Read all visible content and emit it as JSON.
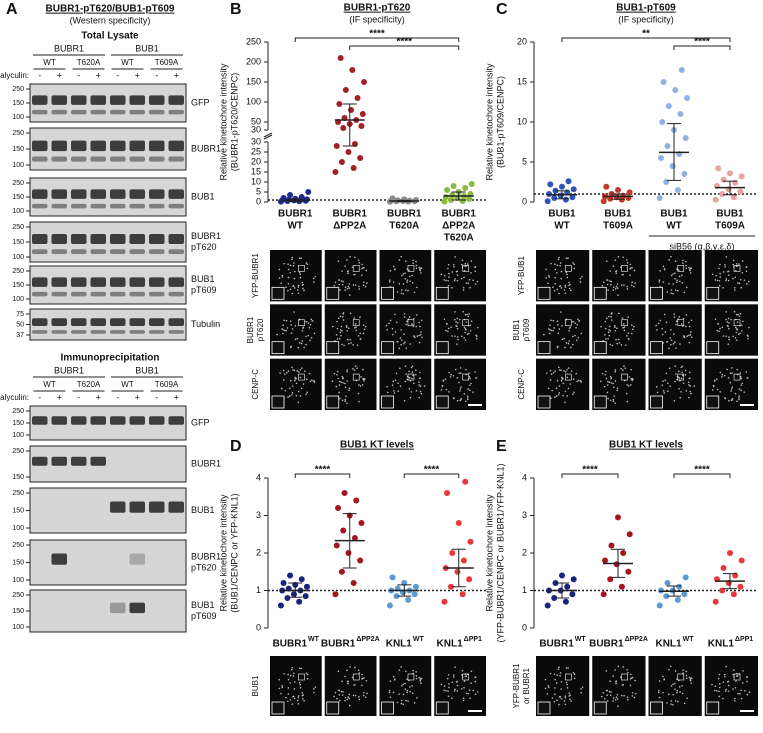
{
  "panel_a": {
    "label": "A",
    "title": "BUBR1-pT620/BUB1-pT609",
    "subtitle": "(Western specificity)",
    "sections": [
      {
        "title": "Total Lysate",
        "groups": [
          {
            "name": "BUBR1",
            "variants": [
              "WT",
              "T620A"
            ]
          },
          {
            "name": "BUB1",
            "variants": [
              "WT",
              "T609A"
            ]
          }
        ],
        "calyculin_label": "Calyculin:",
        "calyculin": [
          "-",
          "+",
          "-",
          "+",
          "-",
          "+",
          "-",
          "+"
        ],
        "blots": [
          {
            "label": [
              "GFP"
            ],
            "mw": [
              250,
              150,
              100
            ]
          },
          {
            "label": [
              "BUBR1"
            ],
            "mw": [
              250,
              150,
              100
            ]
          },
          {
            "label": [
              "BUB1"
            ],
            "mw": [
              250,
              150,
              100
            ]
          },
          {
            "label": [
              "BUBR1",
              "pT620"
            ],
            "mw": [
              250,
              150,
              100
            ]
          },
          {
            "label": [
              "BUB1",
              "pT609"
            ],
            "mw": [
              250,
              150,
              100
            ]
          },
          {
            "label": [
              "Tubulin"
            ],
            "mw": [
              75,
              50,
              37
            ]
          }
        ]
      },
      {
        "title": "Immunoprecipitation",
        "groups": [
          {
            "name": "BUBR1",
            "variants": [
              "WT",
              "T620A"
            ]
          },
          {
            "name": "BUB1",
            "variants": [
              "WT",
              "T609A"
            ]
          }
        ],
        "calyculin_label": "Calyculin:",
        "calyculin": [
          "-",
          "+",
          "-",
          "+",
          "-",
          "+",
          "-",
          "+"
        ],
        "blots": [
          {
            "label": [
              "GFP"
            ],
            "mw": [
              250,
              150,
              100
            ]
          },
          {
            "label": [
              "BUBR1"
            ],
            "mw": [
              250,
              150
            ]
          },
          {
            "label": [
              "BUB1"
            ],
            "mw": [
              250,
              150,
              100
            ]
          },
          {
            "label": [
              "BUBR1",
              "pT620"
            ],
            "mw": [
              250,
              150,
              100
            ]
          },
          {
            "label": [
              "BUB1",
              "pT609"
            ],
            "mw": [
              250,
              150,
              100
            ]
          }
        ]
      }
    ]
  },
  "panel_b": {
    "label": "B",
    "title": "BUBR1-pT620",
    "subtitle": "(IF specificity)",
    "y_label": [
      "Relative kinetochore intensity",
      "(BUBR1-pT620/CENPC)"
    ],
    "ylim": [
      0,
      250
    ],
    "ybreak": 30,
    "yticks": [
      0,
      5,
      10,
      15,
      20,
      25,
      30,
      50,
      100,
      150,
      200,
      250
    ],
    "reference_line": 1,
    "groups": [
      {
        "name": [
          "BUBR1",
          "WT"
        ],
        "color": "#1c2a8c",
        "mean": 0.9,
        "err": [
          0.3,
          1.5
        ],
        "points": [
          0.2,
          0.4,
          0.5,
          0.6,
          0.8,
          0.9,
          1.0,
          1.1,
          1.3,
          1.6,
          2.0,
          2.5,
          3.5,
          5.0
        ]
      },
      {
        "name": [
          "BUBR1",
          "ΔPP2A"
        ],
        "color": "#a3202b",
        "mean": 55,
        "err": [
          28,
          95
        ],
        "points": [
          15,
          17,
          20,
          22,
          25,
          28,
          29,
          35,
          40,
          45,
          50,
          55,
          60,
          70,
          80,
          95,
          110,
          130,
          150,
          180,
          210
        ]
      },
      {
        "name": [
          "BUBR1",
          "T620A"
        ],
        "color": "#8a8a8a",
        "mean": 0.5,
        "err": [
          0.2,
          0.8
        ],
        "points": [
          0.1,
          0.2,
          0.3,
          0.4,
          0.5,
          0.6,
          0.7,
          0.8,
          1.0,
          1.3,
          1.8
        ]
      },
      {
        "name": [
          "BUBR1",
          "ΔPP2A",
          "T620A"
        ],
        "color": "#8cba3c",
        "mean": 3,
        "err": [
          1,
          5
        ],
        "points": [
          0.2,
          0.5,
          1,
          1.5,
          2,
          2.5,
          3,
          3.5,
          4,
          5,
          6,
          7,
          8,
          9
        ]
      }
    ],
    "significance": [
      {
        "label": "****",
        "groups": [
          0,
          3
        ]
      },
      {
        "label": "****",
        "groups": [
          1,
          3
        ]
      }
    ],
    "image_rows": [
      [
        "YFP-BUBR1"
      ],
      [
        "BUBR1",
        "pT620"
      ],
      [
        "CENP-C"
      ]
    ]
  },
  "panel_c": {
    "label": "C",
    "title": "BUB1-pT609",
    "subtitle": "(IF specificity)",
    "y_label": [
      "Relative kinetochore intensity",
      "(BUB1-pT609/CENPC)"
    ],
    "ylim": [
      0,
      20
    ],
    "yticks": [
      0,
      5,
      10,
      15,
      20
    ],
    "reference_line": 1,
    "groups": [
      {
        "name": [
          "BUB1",
          "WT"
        ],
        "color": "#2f55b8",
        "mean": 0.9,
        "err": [
          0.4,
          1.4
        ],
        "points": [
          0.1,
          0.3,
          0.5,
          0.6,
          0.8,
          1.0,
          1.2,
          1.4,
          1.6,
          1.9,
          2.2,
          2.6
        ]
      },
      {
        "name": [
          "BUB1",
          "T609A"
        ],
        "color": "#c0392b",
        "mean": 0.7,
        "err": [
          0.35,
          1.0
        ],
        "points": [
          0.1,
          0.3,
          0.4,
          0.5,
          0.6,
          0.7,
          0.8,
          1.0,
          1.2,
          1.5,
          1.9
        ]
      },
      {
        "name": [
          "BUB1",
          "WT"
        ],
        "color": "#8fb1e3",
        "mean": 6.2,
        "err": [
          2.7,
          9.8
        ],
        "points": [
          0.5,
          1.5,
          2.5,
          3.5,
          4.5,
          5.5,
          6,
          7,
          8,
          9,
          10,
          11,
          12,
          13,
          14,
          15,
          16.5
        ]
      },
      {
        "name": [
          "BUB1",
          "T609A"
        ],
        "color": "#eaa2a2",
        "mean": 1.8,
        "err": [
          0.9,
          2.6
        ],
        "points": [
          0.3,
          0.6,
          1,
          1.3,
          1.6,
          2,
          2.4,
          2.8,
          3.2,
          3.6,
          4.2
        ]
      }
    ],
    "significance": [
      {
        "label": "**",
        "groups": [
          0,
          3
        ]
      },
      {
        "label": "****",
        "groups": [
          2,
          3
        ]
      }
    ],
    "treatment": {
      "label": "siB56 (α,β,γ,ε,δ)",
      "groups": [
        2,
        3
      ]
    },
    "image_rows": [
      [
        "YFP-BUB1"
      ],
      [
        "BUB1",
        "pT609"
      ],
      [
        "CENP-C"
      ]
    ]
  },
  "panel_d": {
    "label": "D",
    "title": "BUB1 KT levels",
    "y_label": [
      "Relative kinetochore intensity",
      "(BUB1/CENPC or YFP-KNL1)"
    ],
    "ylim": [
      0,
      4
    ],
    "yticks": [
      0,
      1,
      2,
      3,
      4
    ],
    "reference_line": 1,
    "groups": [
      {
        "name": "BUBR1",
        "sup": "WT",
        "color": "#1a237e",
        "mean": 1.0,
        "err": [
          0.82,
          1.2
        ],
        "points": [
          0.6,
          0.7,
          0.8,
          0.85,
          0.9,
          1,
          1,
          1.05,
          1.1,
          1.15,
          1.2,
          1.3,
          1.4
        ]
      },
      {
        "name": "BUBR1",
        "sup": "ΔPP2A",
        "color": "#a31621",
        "mean": 2.33,
        "err": [
          1.6,
          3.05
        ],
        "points": [
          0.9,
          1.2,
          1.5,
          1.8,
          2.0,
          2.2,
          2.4,
          2.6,
          2.8,
          3.0,
          3.2,
          3.4,
          3.6
        ]
      },
      {
        "name": "KNL1",
        "sup": "WT",
        "color": "#5b9bd5",
        "mean": 1.0,
        "err": [
          0.85,
          1.15
        ],
        "points": [
          0.6,
          0.75,
          0.85,
          0.9,
          0.95,
          1,
          1,
          1.05,
          1.1,
          1.2,
          1.35
        ]
      },
      {
        "name": "KNL1",
        "sup": "ΔPP1",
        "color": "#e8383d",
        "mean": 1.6,
        "err": [
          1.1,
          2.1
        ],
        "points": [
          0.7,
          0.9,
          1.1,
          1.3,
          1.5,
          1.6,
          1.8,
          2.0,
          2.3,
          2.8,
          3.6,
          3.9
        ]
      }
    ],
    "significance": [
      {
        "label": "****",
        "groups": [
          0,
          1
        ]
      },
      {
        "label": "****",
        "groups": [
          2,
          3
        ]
      }
    ],
    "image_rows": [
      [
        "BUB1"
      ]
    ]
  },
  "panel_e": {
    "label": "E",
    "title": "BUB1 KT levels",
    "y_label": [
      "Relative kinetochore intensity",
      "(YFP-BUBR1/CENPC or BUBR1/YFP-KNL1)"
    ],
    "ylim": [
      0,
      4
    ],
    "yticks": [
      0,
      1,
      2,
      3,
      4
    ],
    "reference_line": 1,
    "groups": [
      {
        "name": "BUBR1",
        "sup": "WT",
        "color": "#1a237e",
        "mean": 1.0,
        "err": [
          0.8,
          1.2
        ],
        "points": [
          0.6,
          0.7,
          0.8,
          0.9,
          1,
          1,
          1.1,
          1.2,
          1.3,
          1.4
        ]
      },
      {
        "name": "BUBR1",
        "sup": "ΔPP2A",
        "color": "#a31621",
        "mean": 1.72,
        "err": [
          1.35,
          2.1
        ],
        "points": [
          0.9,
          1.1,
          1.3,
          1.5,
          1.7,
          1.8,
          2.0,
          2.2,
          2.5,
          2.95
        ]
      },
      {
        "name": "KNL1",
        "sup": "WT",
        "color": "#5b9bd5",
        "mean": 0.98,
        "err": [
          0.85,
          1.12
        ],
        "points": [
          0.6,
          0.75,
          0.85,
          0.9,
          1,
          1,
          1.1,
          1.2,
          1.35
        ]
      },
      {
        "name": "KNL1",
        "sup": "ΔPP1",
        "color": "#e8383d",
        "mean": 1.25,
        "err": [
          1.05,
          1.45
        ],
        "points": [
          0.7,
          0.9,
          1.0,
          1.1,
          1.2,
          1.3,
          1.4,
          1.6,
          1.8,
          2.0
        ]
      }
    ],
    "significance": [
      {
        "label": "****",
        "groups": [
          0,
          1
        ]
      },
      {
        "label": "****",
        "groups": [
          2,
          3
        ]
      }
    ],
    "image_rows": [
      [
        "YFP-BUBR1",
        "or BUBR1"
      ]
    ]
  }
}
